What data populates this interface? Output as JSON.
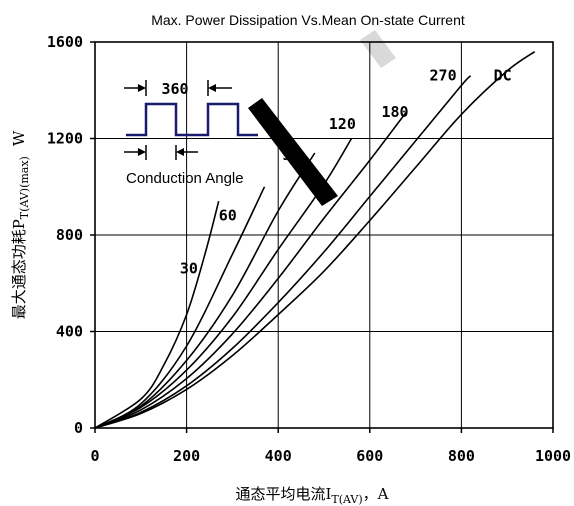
{
  "chart_data": {
    "type": "line",
    "title": "Max. Power Dissipation Vs.Mean On-state Current",
    "xlabel_prefix": "通态平均电流I",
    "xlabel_sub": "T(AV)",
    "xlabel_suffix": "，A",
    "ylabel_prefix": "最大通态功耗P",
    "ylabel_sub": "T(AV)(max)",
    "ylabel_suffix": "W",
    "xlim": [
      0,
      1000
    ],
    "ylim": [
      0,
      1600
    ],
    "xticks": [
      0,
      200,
      400,
      600,
      800,
      1000
    ],
    "yticks": [
      0,
      400,
      800,
      1200,
      1600
    ],
    "grid": true,
    "series": [
      {
        "name": "30",
        "points": [
          [
            0,
            0
          ],
          [
            100,
            120
          ],
          [
            150,
            260
          ],
          [
            200,
            470
          ],
          [
            240,
            720
          ],
          [
            270,
            940
          ]
        ]
      },
      {
        "name": "60",
        "points": [
          [
            0,
            0
          ],
          [
            100,
            100
          ],
          [
            200,
            340
          ],
          [
            300,
            720
          ],
          [
            370,
            1000
          ]
        ]
      },
      {
        "name": "90",
        "points": [
          [
            0,
            0
          ],
          [
            100,
            90
          ],
          [
            200,
            280
          ],
          [
            300,
            550
          ],
          [
            400,
            900
          ],
          [
            480,
            1140
          ]
        ]
      },
      {
        "name": "120",
        "points": [
          [
            0,
            0
          ],
          [
            100,
            85
          ],
          [
            200,
            240
          ],
          [
            300,
            460
          ],
          [
            400,
            740
          ],
          [
            500,
            1010
          ],
          [
            560,
            1200
          ]
        ]
      },
      {
        "name": "180",
        "points": [
          [
            0,
            0
          ],
          [
            100,
            75
          ],
          [
            200,
            205
          ],
          [
            300,
            390
          ],
          [
            400,
            620
          ],
          [
            500,
            870
          ],
          [
            600,
            1110
          ],
          [
            680,
            1310
          ]
        ]
      },
      {
        "name": "270",
        "points": [
          [
            0,
            0
          ],
          [
            100,
            65
          ],
          [
            200,
            175
          ],
          [
            300,
            330
          ],
          [
            400,
            520
          ],
          [
            500,
            730
          ],
          [
            600,
            960
          ],
          [
            700,
            1190
          ],
          [
            800,
            1420
          ],
          [
            820,
            1460
          ]
        ]
      },
      {
        "name": "DC",
        "points": [
          [
            0,
            0
          ],
          [
            100,
            60
          ],
          [
            200,
            160
          ],
          [
            300,
            300
          ],
          [
            400,
            470
          ],
          [
            500,
            650
          ],
          [
            600,
            860
          ],
          [
            700,
            1080
          ],
          [
            800,
            1300
          ],
          [
            900,
            1480
          ],
          [
            960,
            1560
          ]
        ]
      }
    ],
    "series_label_positions": [
      {
        "name": "30",
        "at": [
          205,
          640
        ]
      },
      {
        "name": "60",
        "at": [
          290,
          860
        ]
      },
      {
        "name": "90",
        "at": [
          428,
          1110
        ]
      },
      {
        "name": "120",
        "at": [
          540,
          1240
        ]
      },
      {
        "name": "180",
        "at": [
          655,
          1290
        ]
      },
      {
        "name": "270",
        "at": [
          760,
          1440
        ]
      },
      {
        "name": "DC",
        "at": [
          890,
          1440
        ]
      }
    ],
    "inset": {
      "top_label": "360",
      "bottom_label": "Conduction Angle",
      "pulse_color": "#1a1a6e"
    }
  }
}
